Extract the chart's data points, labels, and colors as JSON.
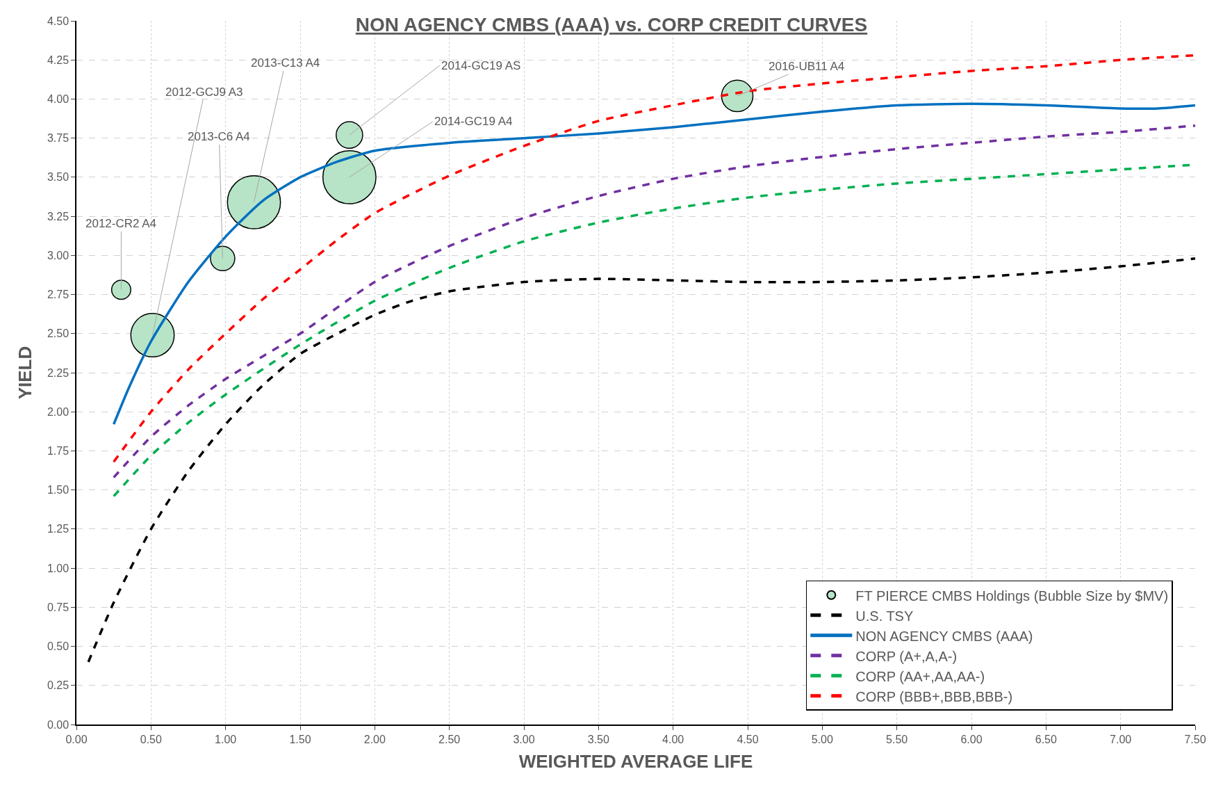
{
  "chart_data": {
    "type": "line",
    "title": "NON AGENCY CMBS (AAA) vs. CORP CREDIT CURVES",
    "xlabel": "WEIGHTED AVERAGE LIFE",
    "ylabel": "YIELD",
    "xlim": [
      0,
      7.5
    ],
    "xticks": [
      {
        "value": 0,
        "label": "0.00"
      },
      {
        "value": 0.5,
        "label": "0.50"
      },
      {
        "value": 1,
        "label": "1.00"
      },
      {
        "value": 1.5,
        "label": "1.50"
      },
      {
        "value": 2,
        "label": "2.00"
      },
      {
        "value": 2.5,
        "label": "2.50"
      },
      {
        "value": 3,
        "label": "3.00"
      },
      {
        "value": 3.5,
        "label": "3.50"
      },
      {
        "value": 4,
        "label": "4.00"
      },
      {
        "value": 4.5,
        "label": "4.50"
      },
      {
        "value": 5,
        "label": "5.00"
      },
      {
        "value": 5.5,
        "label": "5.50"
      },
      {
        "value": 6,
        "label": "6.00"
      },
      {
        "value": 6.5,
        "label": "6.50"
      },
      {
        "value": 7,
        "label": "7.00"
      },
      {
        "value": 7.5,
        "label": "7.50"
      }
    ],
    "ylim": [
      0,
      4.5
    ],
    "yticks": [
      {
        "value": 0,
        "label": "0.00"
      },
      {
        "value": 0.25,
        "label": "0.25"
      },
      {
        "value": 0.5,
        "label": "0.50"
      },
      {
        "value": 0.75,
        "label": "0.75"
      },
      {
        "value": 1,
        "label": "1.00"
      },
      {
        "value": 1.25,
        "label": "1.25"
      },
      {
        "value": 1.5,
        "label": "1.50"
      },
      {
        "value": 1.75,
        "label": "1.75"
      },
      {
        "value": 2,
        "label": "2.00"
      },
      {
        "value": 2.25,
        "label": "2.25"
      },
      {
        "value": 2.5,
        "label": "2.50"
      },
      {
        "value": 2.75,
        "label": "2.75"
      },
      {
        "value": 3,
        "label": "3.00"
      },
      {
        "value": 3.25,
        "label": "3.25"
      },
      {
        "value": 3.5,
        "label": "3.50"
      },
      {
        "value": 3.75,
        "label": "3.75"
      },
      {
        "value": 4,
        "label": "4.00"
      },
      {
        "value": 4.25,
        "label": "4.25"
      },
      {
        "value": 4.5,
        "label": "4.50"
      }
    ],
    "grid": true,
    "legend": "bottom right",
    "series": [
      {
        "type": "bubble",
        "name": "FT PIERCE CMBS Holdings (Bubble Size by $MV)",
        "color": "#b7e4c7",
        "x": [
          0.3,
          0.51,
          0.98,
          1.19,
          1.83,
          1.83,
          4.43
        ],
        "values": [
          2.78,
          2.49,
          2.98,
          3.34,
          3.77,
          3.5,
          4.02
        ],
        "sizes": [
          0.13,
          0.67,
          0.21,
          1.0,
          0.25,
          1.0,
          0.35
        ]
      },
      {
        "name": "U.S. TSY",
        "color": "#000000",
        "line_style": "dashed",
        "x": [
          0.08,
          0.25,
          0.5,
          0.75,
          1.0,
          1.25,
          1.5,
          1.75,
          2.0,
          2.25,
          2.5,
          3.0,
          3.5,
          4.0,
          4.5,
          5.0,
          5.5,
          6.0,
          6.5,
          7.0,
          7.5
        ],
        "values": [
          0.4,
          0.78,
          1.25,
          1.62,
          1.92,
          2.17,
          2.37,
          2.5,
          2.62,
          2.71,
          2.77,
          2.83,
          2.85,
          2.84,
          2.83,
          2.83,
          2.84,
          2.86,
          2.89,
          2.93,
          2.98
        ]
      },
      {
        "name": "NON AGENCY CMBS (AAA)",
        "color": "#0070c0",
        "line_style": "solid",
        "x": [
          0.25,
          0.35,
          0.5,
          0.75,
          1.0,
          1.25,
          1.5,
          1.75,
          2.0,
          2.5,
          3.0,
          3.5,
          4.0,
          4.5,
          5.0,
          5.5,
          6.0,
          6.5,
          7.0,
          7.25,
          7.5
        ],
        "values": [
          1.92,
          2.15,
          2.45,
          2.83,
          3.12,
          3.35,
          3.5,
          3.6,
          3.67,
          3.72,
          3.75,
          3.78,
          3.82,
          3.87,
          3.92,
          3.96,
          3.97,
          3.96,
          3.94,
          3.94,
          3.96
        ]
      },
      {
        "name": "CORP (A+,A,A-)",
        "color": "#7030a0",
        "line_style": "dashed",
        "x": [
          0.25,
          0.5,
          0.75,
          1.0,
          1.5,
          2.0,
          2.5,
          3.0,
          3.5,
          4.0,
          4.5,
          5.0,
          5.5,
          6.0,
          6.5,
          7.0,
          7.5
        ],
        "values": [
          1.58,
          1.84,
          2.04,
          2.21,
          2.5,
          2.83,
          3.06,
          3.24,
          3.38,
          3.49,
          3.57,
          3.63,
          3.68,
          3.72,
          3.76,
          3.79,
          3.83
        ]
      },
      {
        "name": "CORP (AA+,AA,AA-)",
        "color": "#00b050",
        "line_style": "dashed",
        "x": [
          0.25,
          0.5,
          0.75,
          1.0,
          1.5,
          2.0,
          2.5,
          3.0,
          3.5,
          4.0,
          4.5,
          5.0,
          5.5,
          6.0,
          6.5,
          7.0,
          7.5
        ],
        "values": [
          1.46,
          1.72,
          1.93,
          2.11,
          2.43,
          2.71,
          2.92,
          3.09,
          3.21,
          3.3,
          3.37,
          3.42,
          3.46,
          3.49,
          3.52,
          3.55,
          3.58
        ]
      },
      {
        "name": "CORP (BBB+,BBB,BBB-)",
        "color": "#ff0000",
        "line_style": "dashed",
        "x": [
          0.25,
          0.5,
          0.75,
          1.0,
          1.25,
          1.5,
          1.75,
          2.0,
          2.5,
          3.0,
          3.5,
          4.0,
          4.5,
          5.0,
          5.5,
          6.0,
          6.5,
          7.0,
          7.5
        ],
        "values": [
          1.68,
          2.0,
          2.27,
          2.5,
          2.72,
          2.91,
          3.1,
          3.27,
          3.51,
          3.7,
          3.86,
          3.96,
          4.05,
          4.1,
          4.14,
          4.18,
          4.21,
          4.25,
          4.28
        ]
      }
    ],
    "annotations": [
      {
        "text": "2012-CR2 A4",
        "x": 0.3,
        "y": 2.78
      },
      {
        "text": "2012-GCJ9 A3",
        "x": 0.51,
        "y": 2.49
      },
      {
        "text": "2013-C6 A4",
        "x": 0.98,
        "y": 2.98
      },
      {
        "text": "2013-C13 A4",
        "x": 1.19,
        "y": 3.34
      },
      {
        "text": "2014-GC19 AS",
        "x": 1.83,
        "y": 3.77
      },
      {
        "text": "2014-GC19 A4",
        "x": 1.83,
        "y": 3.5
      },
      {
        "text": "2016-UB11 A4",
        "x": 4.43,
        "y": 4.02
      }
    ]
  }
}
